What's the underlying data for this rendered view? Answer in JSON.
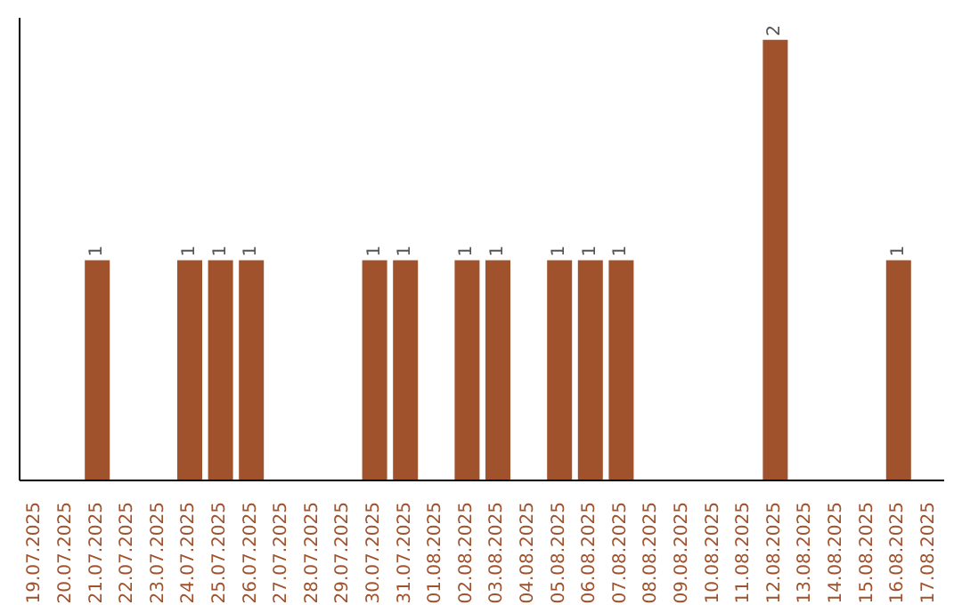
{
  "chart_data": {
    "type": "bar",
    "categories": [
      "19.07.2025",
      "20.07.2025",
      "21.07.2025",
      "22.07.2025",
      "23.07.2025",
      "24.07.2025",
      "25.07.2025",
      "26.07.2025",
      "27.07.2025",
      "28.07.2025",
      "29.07.2025",
      "30.07.2025",
      "31.07.2025",
      "01.08.2025",
      "02.08.2025",
      "03.08.2025",
      "04.08.2025",
      "05.08.2025",
      "06.08.2025",
      "07.08.2025",
      "08.08.2025",
      "09.08.2025",
      "10.08.2025",
      "11.08.2025",
      "12.08.2025",
      "13.08.2025",
      "14.08.2025",
      "15.08.2025",
      "16.08.2025",
      "17.08.2025"
    ],
    "values": [
      0,
      0,
      1,
      0,
      0,
      1,
      1,
      1,
      0,
      0,
      0,
      1,
      1,
      0,
      1,
      1,
      0,
      1,
      1,
      1,
      0,
      0,
      0,
      0,
      2,
      0,
      0,
      0,
      1,
      0
    ],
    "value_labels": [
      null,
      null,
      "1",
      null,
      null,
      "1",
      "1",
      "1",
      null,
      null,
      null,
      "1",
      "1",
      null,
      "1",
      "1",
      null,
      "1",
      "1",
      "1",
      null,
      null,
      null,
      null,
      "2",
      null,
      null,
      null,
      "1",
      null
    ],
    "color": "#a0522d",
    "ylim": [
      0,
      2.1
    ],
    "tick_labels": "x",
    "grid": false
  }
}
